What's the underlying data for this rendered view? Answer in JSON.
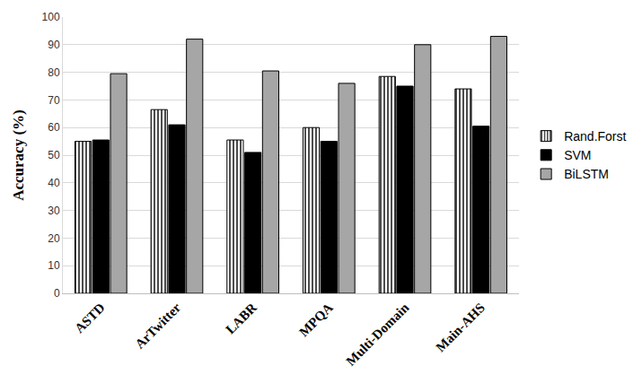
{
  "chart_data": {
    "type": "bar",
    "y_label": "Accuracy (%)",
    "categories": [
      "ASTD",
      "ArTwitter",
      "LABR",
      "MPQA",
      "Multi-Domain",
      "Main-AHS"
    ],
    "series": [
      {
        "name": "Rand.Forst",
        "color": "#ffffff",
        "marker": "striped",
        "values": [
          55,
          66.5,
          55.5,
          60,
          78.5,
          74
        ]
      },
      {
        "name": "SVM",
        "color": "#000000",
        "values": [
          55.5,
          61,
          51,
          55,
          75,
          60.5
        ]
      },
      {
        "name": "BiLSTM",
        "color": "#a6a6a6",
        "values": [
          79.5,
          92,
          80.5,
          76,
          90,
          93
        ]
      }
    ],
    "ylim": [
      0,
      100
    ],
    "yticks": [
      0,
      10,
      20,
      30,
      40,
      50,
      60,
      70,
      80,
      90,
      100
    ],
    "grid": true,
    "legend": "right"
  }
}
